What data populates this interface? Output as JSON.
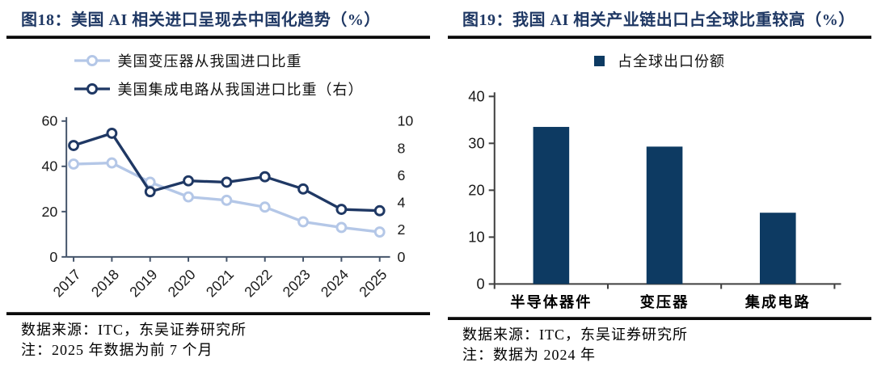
{
  "colors": {
    "title_navy": "#1F3864",
    "line_navy": "#1F3864",
    "line_light_blue": "#B4C7E7",
    "bar_navy": "#0D3A62",
    "line_axis": "#44546A",
    "bar_axis": "#404040"
  },
  "left_panel": {
    "title": "图18：美国 AI 相关进口呈现去中国化趋势（%）",
    "legend": [
      {
        "label": "美国变压器从我国进口比重"
      },
      {
        "label": "美国集成电路从我国进口比重（右）"
      }
    ],
    "source": "数据来源：ITC，东吴证券研究所",
    "note": "注：2025 年数据为前 7 个月"
  },
  "right_panel": {
    "title": "图19：我国 AI 相关产业链出口占全球比重较高（%）",
    "legend": [
      {
        "label": "占全球出口份额"
      }
    ],
    "source": "数据来源：ITC，东吴证券研究所",
    "note": "注：数据为 2024 年"
  },
  "chart_data": [
    {
      "type": "line",
      "title": "美国 AI 相关进口呈现去中国化趋势（%）",
      "x": [
        "2017",
        "2018",
        "2019",
        "2020",
        "2021",
        "2022",
        "2023",
        "2024",
        "2025"
      ],
      "series": [
        {
          "name": "美国变压器从我国进口比重",
          "axis": "left",
          "color": "#B4C7E7",
          "values": [
            41,
            41.5,
            33,
            26.5,
            25,
            22,
            15.5,
            13,
            11
          ]
        },
        {
          "name": "美国集成电路从我国进口比重（右）",
          "axis": "right",
          "color": "#1F3864",
          "values": [
            8.2,
            9.1,
            4.8,
            5.6,
            5.5,
            5.9,
            5.0,
            3.5,
            3.4
          ]
        }
      ],
      "left_axis": {
        "min": 0,
        "max": 60,
        "ticks": [
          0,
          20,
          40,
          60
        ]
      },
      "right_axis": {
        "min": 0,
        "max": 10,
        "ticks": [
          0,
          2,
          4,
          6,
          8,
          10
        ]
      },
      "grid": false,
      "legend_position": "top"
    },
    {
      "type": "bar",
      "title": "我国 AI 相关产业链出口占全球比重较高（%）",
      "legend": "占全球出口份额",
      "color": "#0D3A62",
      "categories": [
        "半导体器件",
        "变压器",
        "集成电路"
      ],
      "values": [
        33.5,
        29.3,
        15.2
      ],
      "ylim": [
        0,
        40
      ],
      "yticks": [
        0,
        10,
        20,
        30,
        40
      ],
      "grid": false,
      "legend_position": "top"
    }
  ]
}
